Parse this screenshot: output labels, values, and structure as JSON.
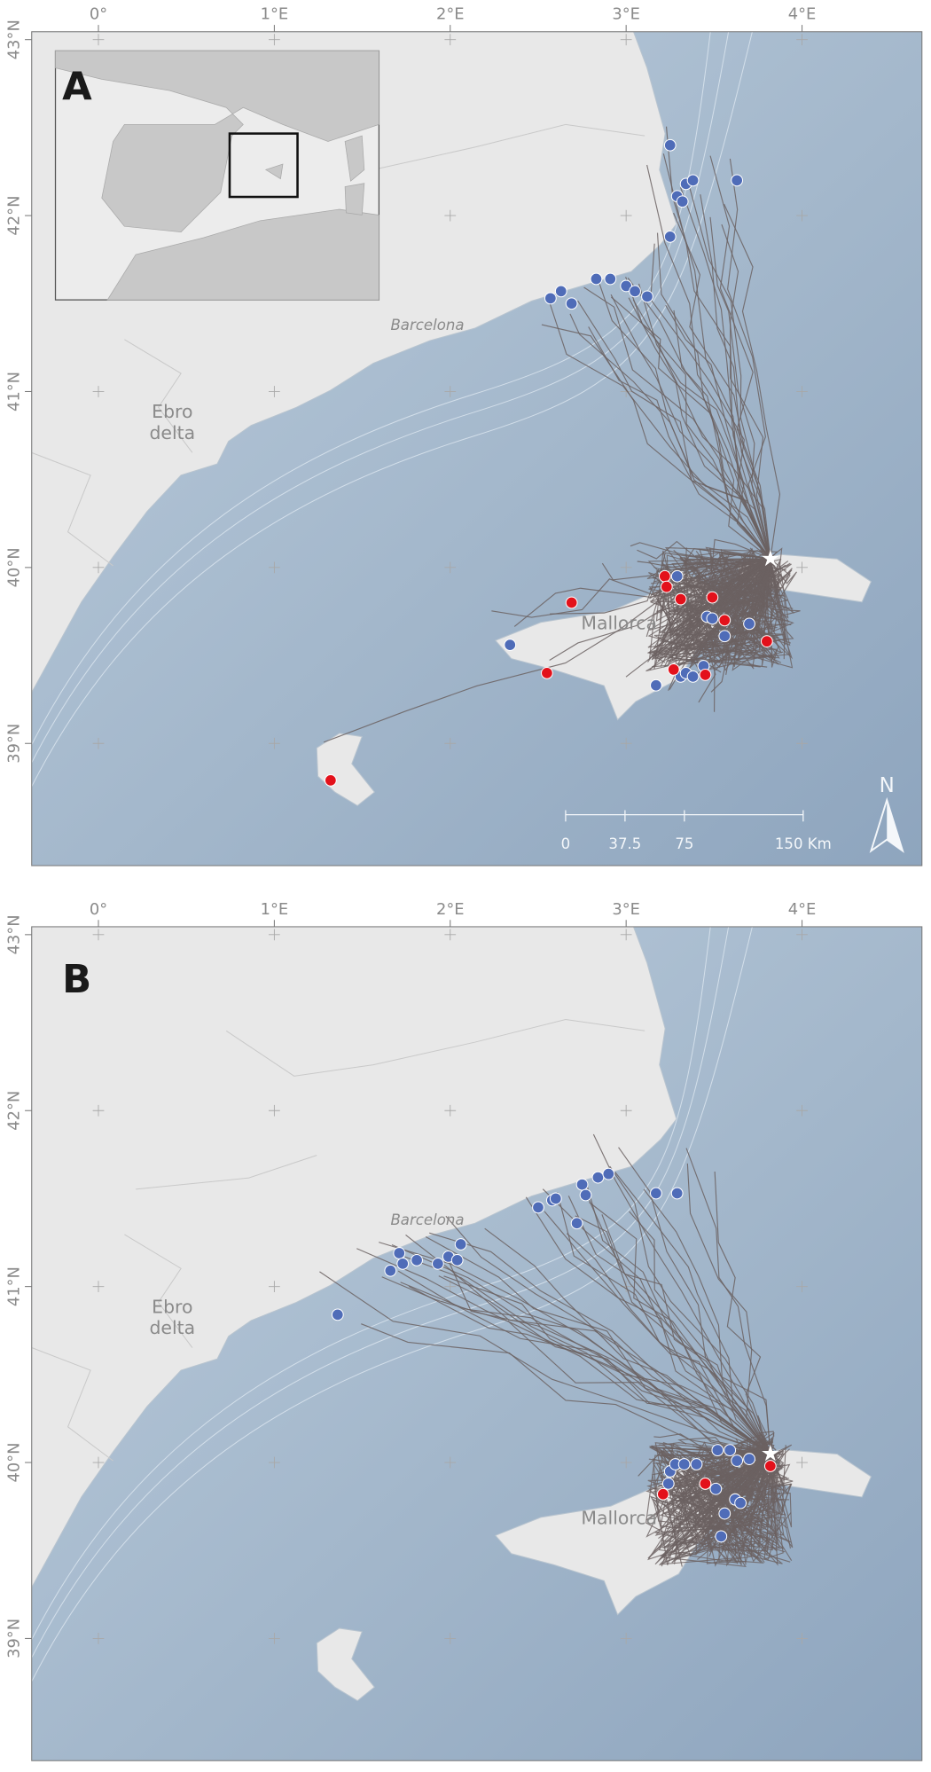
{
  "panels": [
    {
      "label": "A",
      "lon_ticks": [
        {
          "value": 0,
          "label": "0°"
        },
        {
          "value": 1,
          "label": "1°E"
        },
        {
          "value": 2,
          "label": "2°E"
        },
        {
          "value": 3,
          "label": "3°E"
        },
        {
          "value": 4,
          "label": "4°E"
        }
      ],
      "lat_ticks": [
        {
          "value": 43,
          "label": "43°N"
        },
        {
          "value": 42,
          "label": "42°N"
        },
        {
          "value": 41,
          "label": "41°N"
        },
        {
          "value": 40,
          "label": "40°N"
        },
        {
          "value": 39,
          "label": "39°N"
        }
      ],
      "places": [
        {
          "name": "Barcelona",
          "lon": 1.87,
          "lat": 41.35
        },
        {
          "name": "Ebro",
          "lon": 0.42,
          "lat": 40.85
        },
        {
          "name": "delta",
          "lon": 0.42,
          "lat": 40.73
        },
        {
          "name": "Mallorca",
          "lon": 2.96,
          "lat": 39.65
        }
      ],
      "colony": {
        "lon": 3.82,
        "lat": 40.05
      },
      "point_groups": [
        {
          "color": "#4f6cb8",
          "points": [
            [
              3.25,
              42.4
            ],
            [
              3.29,
              42.11
            ],
            [
              3.34,
              42.18
            ],
            [
              3.38,
              42.2
            ],
            [
              3.32,
              42.08
            ],
            [
              3.63,
              42.2
            ],
            [
              3.25,
              41.88
            ],
            [
              2.83,
              41.64
            ],
            [
              2.91,
              41.64
            ],
            [
              2.57,
              41.53
            ],
            [
              2.63,
              41.57
            ],
            [
              2.69,
              41.5
            ],
            [
              3.0,
              41.6
            ],
            [
              3.05,
              41.57
            ],
            [
              3.12,
              41.54
            ],
            [
              3.29,
              39.95
            ],
            [
              3.46,
              39.72
            ],
            [
              3.49,
              39.71
            ],
            [
              3.56,
              39.61
            ],
            [
              3.7,
              39.68
            ],
            [
              2.34,
              39.56
            ],
            [
              3.17,
              39.33
            ],
            [
              3.31,
              39.38
            ],
            [
              3.34,
              39.4
            ],
            [
              3.38,
              39.38
            ],
            [
              3.44,
              39.44
            ]
          ]
        },
        {
          "color": "#e3111b",
          "points": [
            [
              3.22,
              39.95
            ],
            [
              3.23,
              39.89
            ],
            [
              3.31,
              39.82
            ],
            [
              3.49,
              39.83
            ],
            [
              3.56,
              39.7
            ],
            [
              2.69,
              39.8
            ],
            [
              3.8,
              39.58
            ],
            [
              3.27,
              39.42
            ],
            [
              3.45,
              39.39
            ],
            [
              2.55,
              39.4
            ],
            [
              1.32,
              38.79
            ]
          ]
        }
      ],
      "scale_bar": {
        "ticks": [
          0,
          37.5,
          75,
          {
            "value": 150,
            "label": "150 Km"
          }
        ]
      },
      "north": "N"
    },
    {
      "label": "B",
      "lon_ticks": [
        {
          "value": 0,
          "label": "0°"
        },
        {
          "value": 1,
          "label": "1°E"
        },
        {
          "value": 2,
          "label": "2°E"
        },
        {
          "value": 3,
          "label": "3°E"
        },
        {
          "value": 4,
          "label": "4°E"
        }
      ],
      "lat_ticks": [
        {
          "value": 43,
          "label": "43°N"
        },
        {
          "value": 42,
          "label": "42°N"
        },
        {
          "value": 41,
          "label": "41°N"
        },
        {
          "value": 40,
          "label": "40°N"
        },
        {
          "value": 39,
          "label": "39°N"
        }
      ],
      "places": [
        {
          "name": "Barcelona",
          "lon": 1.87,
          "lat": 41.35
        },
        {
          "name": "Ebro",
          "lon": 0.42,
          "lat": 40.85
        },
        {
          "name": "delta",
          "lon": 0.42,
          "lat": 40.73
        },
        {
          "name": "Mallorca",
          "lon": 2.96,
          "lat": 39.65
        }
      ],
      "colony": {
        "lon": 3.82,
        "lat": 40.05
      },
      "point_groups": [
        {
          "color": "#4f6cb8",
          "points": [
            [
              1.71,
              41.19
            ],
            [
              1.73,
              41.13
            ],
            [
              1.81,
              41.15
            ],
            [
              1.66,
              41.09
            ],
            [
              1.93,
              41.13
            ],
            [
              1.99,
              41.17
            ],
            [
              2.04,
              41.15
            ],
            [
              2.06,
              41.24
            ],
            [
              1.36,
              40.84
            ],
            [
              2.5,
              41.45
            ],
            [
              2.58,
              41.49
            ],
            [
              2.6,
              41.5
            ],
            [
              2.72,
              41.36
            ],
            [
              2.75,
              41.58
            ],
            [
              2.77,
              41.52
            ],
            [
              2.84,
              41.62
            ],
            [
              2.9,
              41.64
            ],
            [
              3.17,
              41.53
            ],
            [
              3.29,
              41.53
            ],
            [
              3.25,
              39.95
            ],
            [
              3.28,
              39.99
            ],
            [
              3.33,
              39.99
            ],
            [
              3.4,
              39.99
            ],
            [
              3.52,
              40.07
            ],
            [
              3.59,
              40.07
            ],
            [
              3.63,
              40.01
            ],
            [
              3.7,
              40.02
            ],
            [
              3.24,
              39.88
            ],
            [
              3.51,
              39.85
            ],
            [
              3.62,
              39.79
            ],
            [
              3.65,
              39.77
            ],
            [
              3.56,
              39.71
            ],
            [
              3.54,
              39.58
            ],
            [
              3.45,
              39.88
            ]
          ]
        },
        {
          "color": "#e3111b",
          "points": [
            [
              3.21,
              39.82
            ],
            [
              3.45,
              39.88
            ],
            [
              3.82,
              39.98
            ]
          ]
        }
      ]
    }
  ]
}
